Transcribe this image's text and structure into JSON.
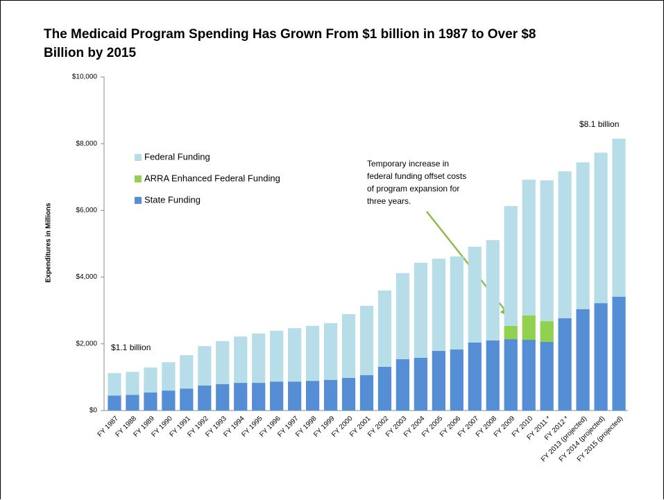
{
  "chart_data": {
    "type": "stacked_bar",
    "title": "The Medicaid Program Spending Has Grown From $1 billion in 1987 to Over $8 Billion by 2015",
    "y_label": "Expenditures in Millions",
    "categories": [
      "FY 1987",
      "FY 1988",
      "FY 1989",
      "FY 1990",
      "FY 1991",
      "FY 1992",
      "FY 1993",
      "FY 1994",
      "FY 1995",
      "FY 1996",
      "FY 1997",
      "FY 1998",
      "FY 1999",
      "FY 2000",
      "FY 2001",
      "FY 2002",
      "FY 2003",
      "FY 2004",
      "FY 2005",
      "FY 2006",
      "FY 2007",
      "FY 2008",
      "FY 2009",
      "FY 2010",
      "FY 2011 *",
      "FY 2012 *",
      "FY 2013 (projected)",
      "FY 2014 (projected)",
      "FY 2015 (projected)"
    ],
    "series": [
      {
        "name": "State Funding",
        "color": "#558ed5",
        "values": [
          450,
          470,
          540,
          600,
          660,
          750,
          790,
          830,
          830,
          870,
          870,
          890,
          920,
          980,
          1060,
          1310,
          1540,
          1580,
          1790,
          1830,
          2040,
          2100,
          2140,
          2120,
          2060,
          2770,
          3040,
          3220,
          3410
        ]
      },
      {
        "name": "ARRA Enhanced Federal Funding",
        "color": "#92d050",
        "values": [
          null,
          null,
          null,
          null,
          null,
          null,
          null,
          null,
          null,
          null,
          null,
          null,
          null,
          null,
          null,
          null,
          null,
          null,
          null,
          null,
          null,
          null,
          400,
          730,
          620,
          null,
          null,
          null,
          null
        ]
      },
      {
        "name": "Federal Funding",
        "color": "#b7dde8",
        "values": [
          670,
          690,
          750,
          850,
          1000,
          1180,
          1290,
          1390,
          1480,
          1520,
          1600,
          1650,
          1700,
          1910,
          2080,
          2290,
          2580,
          2850,
          2760,
          2790,
          2870,
          3010,
          3590,
          4070,
          4220,
          4400,
          4400,
          4510,
          4740
        ]
      }
    ],
    "ylim": [
      0,
      10000
    ],
    "yticks": [
      {
        "value": 0,
        "label": "$0"
      },
      {
        "value": 2000,
        "label": "$2,000"
      },
      {
        "value": 4000,
        "label": "$4,000"
      },
      {
        "value": 6000,
        "label": "$6,000"
      },
      {
        "value": 8000,
        "label": "$8,000"
      },
      {
        "value": 10000,
        "label": "$10,000"
      }
    ],
    "annotations": [
      {
        "text": "$1.1 billion"
      },
      {
        "text": "$8.1 billion"
      },
      {
        "lines": [
          "Temporary increase in",
          "federal funding offset costs",
          "of program expansion for",
          "three years."
        ]
      }
    ]
  }
}
